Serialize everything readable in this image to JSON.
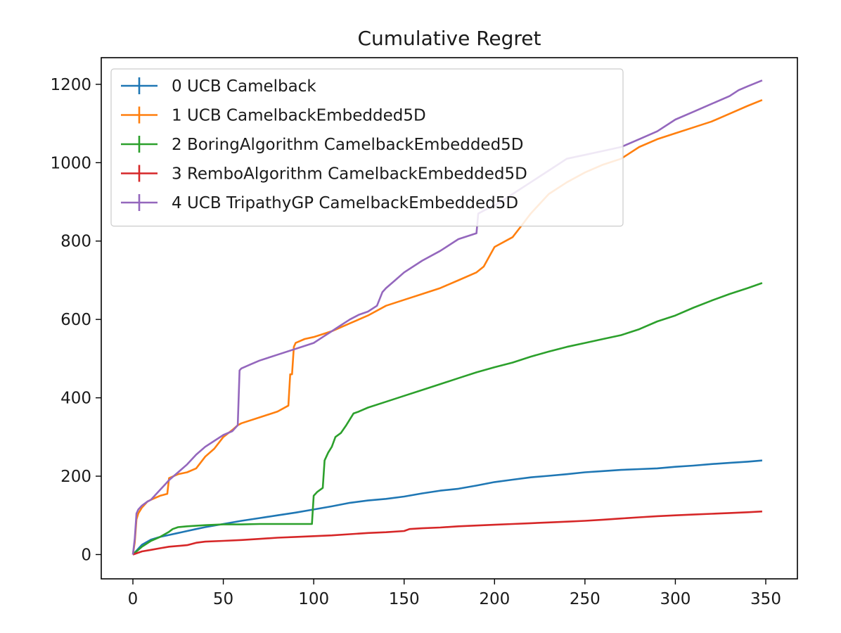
{
  "chart_data": {
    "type": "line",
    "title": "Cumulative Regret",
    "xlabel": "",
    "ylabel": "",
    "xlim": [
      -17.5,
      367.5
    ],
    "ylim": [
      -62,
      1268
    ],
    "xticks": [
      0,
      50,
      100,
      150,
      200,
      250,
      300,
      350
    ],
    "yticks": [
      0,
      200,
      400,
      600,
      800,
      1000,
      1200
    ],
    "grid": false,
    "legend": "upper-left",
    "series": [
      {
        "name": "0 UCB   Camelback",
        "color": "#1f77b4",
        "x": [
          0,
          5,
          10,
          15,
          20,
          25,
          30,
          35,
          40,
          50,
          60,
          70,
          80,
          90,
          100,
          110,
          120,
          130,
          140,
          150,
          160,
          170,
          180,
          190,
          200,
          210,
          220,
          230,
          240,
          250,
          260,
          270,
          280,
          290,
          300,
          310,
          320,
          330,
          340,
          348
        ],
        "y": [
          0,
          25,
          38,
          45,
          50,
          55,
          60,
          65,
          70,
          78,
          86,
          93,
          100,
          107,
          115,
          123,
          132,
          138,
          142,
          148,
          156,
          163,
          168,
          176,
          185,
          191,
          197,
          201,
          205,
          210,
          213,
          216,
          218,
          220,
          224,
          227,
          231,
          234,
          237,
          240
        ]
      },
      {
        "name": "1 UCB   CamelbackEmbedded5D",
        "color": "#ff7f0e",
        "x": [
          0,
          1,
          2,
          3,
          5,
          8,
          10,
          15,
          19,
          20,
          25,
          30,
          35,
          40,
          45,
          50,
          55,
          58,
          60,
          70,
          80,
          86,
          87,
          88,
          89,
          90,
          95,
          100,
          110,
          120,
          130,
          140,
          150,
          160,
          170,
          180,
          190,
          194,
          197,
          200,
          210,
          215,
          220,
          230,
          240,
          250,
          260,
          270,
          280,
          290,
          300,
          310,
          320,
          330,
          340,
          348
        ],
        "y": [
          0,
          30,
          90,
          105,
          120,
          135,
          140,
          150,
          155,
          195,
          205,
          210,
          220,
          250,
          270,
          300,
          318,
          330,
          335,
          350,
          365,
          380,
          460,
          460,
          530,
          540,
          550,
          555,
          570,
          590,
          610,
          635,
          650,
          665,
          680,
          700,
          720,
          735,
          760,
          785,
          810,
          840,
          870,
          920,
          950,
          975,
          995,
          1010,
          1040,
          1060,
          1075,
          1090,
          1105,
          1125,
          1145,
          1160
        ]
      },
      {
        "name": "2 BoringAlgorithm   CamelbackEmbedded5D",
        "color": "#2ca02c",
        "x": [
          0,
          5,
          10,
          15,
          20,
          22,
          25,
          30,
          40,
          50,
          60,
          70,
          80,
          90,
          99,
          100,
          102,
          105,
          106,
          108,
          110,
          112,
          115,
          118,
          120,
          122,
          125,
          130,
          140,
          150,
          160,
          170,
          180,
          190,
          200,
          210,
          220,
          230,
          240,
          250,
          260,
          270,
          280,
          290,
          300,
          310,
          320,
          330,
          340,
          348
        ],
        "y": [
          0,
          20,
          35,
          45,
          58,
          65,
          70,
          72,
          75,
          77,
          77,
          78,
          78,
          78,
          78,
          150,
          160,
          170,
          240,
          260,
          275,
          300,
          310,
          330,
          345,
          360,
          365,
          375,
          390,
          405,
          420,
          435,
          450,
          465,
          478,
          490,
          505,
          518,
          530,
          540,
          550,
          560,
          575,
          595,
          610,
          630,
          648,
          665,
          680,
          693
        ]
      },
      {
        "name": "3 RemboAlgorithm   CamelbackEmbedded5D",
        "color": "#d62728",
        "x": [
          0,
          5,
          10,
          15,
          20,
          30,
          35,
          40,
          50,
          60,
          70,
          80,
          90,
          100,
          110,
          120,
          130,
          140,
          150,
          153,
          160,
          170,
          180,
          190,
          200,
          210,
          220,
          230,
          240,
          250,
          260,
          270,
          280,
          290,
          300,
          310,
          320,
          330,
          340,
          348
        ],
        "y": [
          0,
          8,
          12,
          16,
          20,
          24,
          30,
          33,
          35,
          37,
          40,
          43,
          45,
          47,
          49,
          52,
          55,
          57,
          60,
          65,
          67,
          69,
          72,
          74,
          76,
          78,
          80,
          82,
          84,
          86,
          89,
          92,
          95,
          98,
          100,
          102,
          104,
          106,
          108,
          110
        ]
      },
      {
        "name": "4 UCB TripathyGP CamelbackEmbedded5D",
        "color": "#9467bd",
        "x": [
          0,
          1,
          2,
          3,
          5,
          8,
          10,
          12,
          15,
          18,
          20,
          25,
          30,
          35,
          40,
          45,
          50,
          55,
          58,
          59,
          60,
          65,
          70,
          80,
          90,
          100,
          105,
          110,
          115,
          120,
          125,
          130,
          135,
          138,
          140,
          145,
          150,
          160,
          170,
          180,
          190,
          191,
          195,
          200,
          210,
          220,
          230,
          240,
          250,
          260,
          270,
          280,
          290,
          300,
          310,
          320,
          330,
          335,
          340,
          348
        ],
        "y": [
          0,
          40,
          105,
          115,
          125,
          135,
          140,
          150,
          165,
          180,
          190,
          210,
          230,
          255,
          275,
          290,
          305,
          315,
          330,
          470,
          475,
          485,
          495,
          510,
          525,
          540,
          555,
          570,
          585,
          600,
          612,
          620,
          635,
          670,
          680,
          700,
          720,
          750,
          775,
          805,
          820,
          870,
          880,
          890,
          920,
          950,
          980,
          1010,
          1020,
          1030,
          1040,
          1060,
          1080,
          1110,
          1130,
          1150,
          1170,
          1185,
          1195,
          1210
        ]
      }
    ]
  }
}
